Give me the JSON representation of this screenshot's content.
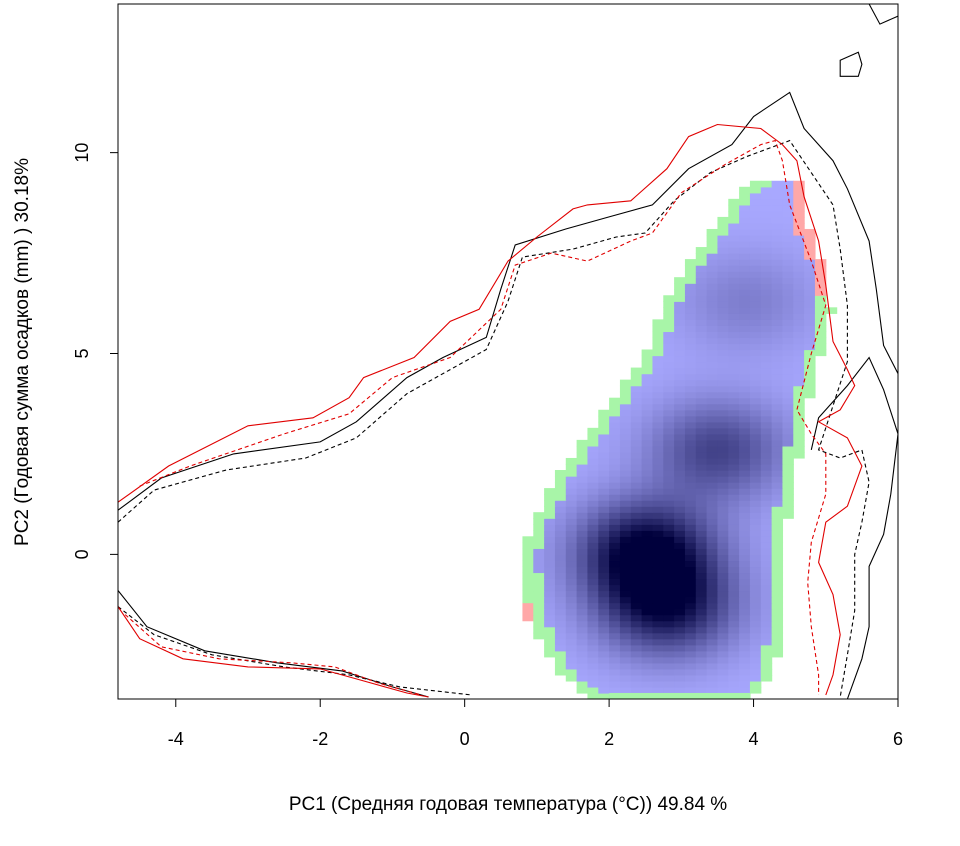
{
  "chart_data": {
    "type": "heatmap",
    "title": "",
    "xlabel": "PC1 (Средняя годовая температура (°С)) 49.84 %",
    "ylabel": "PC2 (Годовая сумма осадков  (mm) ) 30.18%",
    "xlim": [
      -4.8,
      6.0
    ],
    "ylim": [
      -3.6,
      13.7
    ],
    "x_ticks": [
      -4,
      -2,
      0,
      2,
      4,
      6
    ],
    "y_ticks": [
      0,
      5,
      10
    ],
    "x_tick_labels": [
      "-4",
      "-2",
      "0",
      "2",
      "4",
      "6"
    ],
    "y_tick_labels": [
      "0",
      "5",
      "10"
    ],
    "grid": false,
    "colors": {
      "density_low": "#a8a8ff",
      "density_high": "#00003c",
      "green_margin": "#a8f5a8",
      "red_margin": "#ffa8a8",
      "contour_black": "#000000",
      "contour_red": "#e00000"
    },
    "density_peaks": [
      {
        "x": 2.5,
        "y": 0.1,
        "level": 1.0
      },
      {
        "x": 2.8,
        "y": -1.3,
        "level": 0.85
      },
      {
        "x": 3.5,
        "y": 2.6,
        "level": 0.6
      },
      {
        "x": 3.9,
        "y": 6.3,
        "level": 0.25
      }
    ],
    "contours": [
      {
        "name": "black-solid",
        "color": "#000000",
        "dash": false,
        "points": [
          [
            -4.8,
            1.1
          ],
          [
            -4.2,
            1.9
          ],
          [
            -3.2,
            2.5
          ],
          [
            -2.0,
            2.8
          ],
          [
            -1.5,
            3.3
          ],
          [
            -0.8,
            4.4
          ],
          [
            -0.3,
            4.9
          ],
          [
            0.3,
            5.4
          ],
          [
            0.5,
            6.6
          ],
          [
            0.7,
            7.7
          ],
          [
            1.4,
            8.1
          ],
          [
            2.0,
            8.4
          ],
          [
            2.6,
            8.7
          ],
          [
            3.1,
            9.6
          ],
          [
            3.7,
            10.2
          ],
          [
            4.0,
            10.9
          ],
          [
            4.5,
            11.5
          ],
          [
            4.7,
            10.6
          ],
          [
            5.1,
            9.8
          ],
          [
            5.3,
            9.1
          ],
          [
            5.6,
            7.8
          ],
          [
            5.7,
            6.6
          ],
          [
            5.8,
            5.2
          ],
          [
            6.0,
            4.5
          ]
        ]
      },
      {
        "name": "black-solid-lower",
        "color": "#000000",
        "dash": false,
        "points": [
          [
            -4.8,
            -0.9
          ],
          [
            -4.4,
            -1.8
          ],
          [
            -3.6,
            -2.4
          ],
          [
            -2.6,
            -2.7
          ],
          [
            -1.7,
            -2.9
          ],
          [
            -1.0,
            -3.3
          ],
          [
            -0.5,
            -3.55
          ]
        ]
      },
      {
        "name": "black-solid-right",
        "color": "#000000",
        "dash": false,
        "points": [
          [
            4.8,
            2.6
          ],
          [
            4.9,
            3.4
          ],
          [
            5.3,
            4.2
          ],
          [
            5.6,
            4.9
          ],
          [
            5.8,
            4.1
          ],
          [
            6.0,
            3.0
          ],
          [
            5.9,
            1.5
          ],
          [
            5.8,
            0.5
          ],
          [
            5.6,
            -0.3
          ],
          [
            5.6,
            -1.8
          ],
          [
            5.5,
            -2.6
          ],
          [
            5.3,
            -3.6
          ]
        ]
      },
      {
        "name": "black-solid-island-1",
        "color": "#000000",
        "dash": false,
        "closed": true,
        "points": [
          [
            5.2,
            12.3
          ],
          [
            5.45,
            12.5
          ],
          [
            5.5,
            12.2
          ],
          [
            5.45,
            11.9
          ],
          [
            5.2,
            11.9
          ]
        ]
      },
      {
        "name": "black-solid-island-2",
        "color": "#000000",
        "dash": false,
        "points": [
          [
            5.6,
            13.7
          ],
          [
            5.75,
            13.2
          ],
          [
            6.0,
            13.4
          ]
        ]
      },
      {
        "name": "black-dashed",
        "color": "#000000",
        "dash": true,
        "points": [
          [
            -4.8,
            0.8
          ],
          [
            -4.3,
            1.6
          ],
          [
            -3.3,
            2.1
          ],
          [
            -2.2,
            2.4
          ],
          [
            -1.5,
            2.9
          ],
          [
            -0.8,
            4.0
          ],
          [
            -0.2,
            4.6
          ],
          [
            0.3,
            5.1
          ],
          [
            0.6,
            6.3
          ],
          [
            0.8,
            7.4
          ],
          [
            1.5,
            7.6
          ],
          [
            2.1,
            7.9
          ],
          [
            2.5,
            8.0
          ],
          [
            2.9,
            8.8
          ],
          [
            3.4,
            9.5
          ],
          [
            3.9,
            9.9
          ],
          [
            4.5,
            10.3
          ],
          [
            4.8,
            9.5
          ],
          [
            5.1,
            8.7
          ],
          [
            5.2,
            7.6
          ],
          [
            5.3,
            6.2
          ],
          [
            5.3,
            4.8
          ],
          [
            5.1,
            3.7
          ],
          [
            4.9,
            2.6
          ],
          [
            5.2,
            2.4
          ],
          [
            5.5,
            2.6
          ],
          [
            5.6,
            1.8
          ],
          [
            5.5,
            0.8
          ],
          [
            5.4,
            0.0
          ],
          [
            5.4,
            -1.4
          ],
          [
            5.3,
            -2.5
          ],
          [
            5.2,
            -3.55
          ]
        ]
      },
      {
        "name": "black-dashed-lower",
        "color": "#000000",
        "dash": true,
        "points": [
          [
            -4.8,
            -1.3
          ],
          [
            -4.3,
            -2.0
          ],
          [
            -3.5,
            -2.5
          ],
          [
            -2.5,
            -2.8
          ],
          [
            -1.6,
            -3.0
          ],
          [
            -0.9,
            -3.3
          ],
          [
            0.1,
            -3.5
          ]
        ]
      },
      {
        "name": "red-solid",
        "color": "#e00000",
        "dash": false,
        "points": [
          [
            -4.8,
            1.3
          ],
          [
            -4.1,
            2.2
          ],
          [
            -3.0,
            3.2
          ],
          [
            -2.1,
            3.4
          ],
          [
            -1.6,
            3.9
          ],
          [
            -1.4,
            4.4
          ],
          [
            -0.7,
            4.9
          ],
          [
            -0.2,
            5.8
          ],
          [
            0.2,
            6.1
          ],
          [
            0.6,
            7.3
          ],
          [
            1.0,
            7.9
          ],
          [
            1.5,
            8.6
          ],
          [
            1.7,
            8.7
          ],
          [
            2.3,
            8.8
          ],
          [
            2.8,
            9.6
          ],
          [
            3.1,
            10.4
          ],
          [
            3.5,
            10.7
          ],
          [
            4.1,
            10.6
          ],
          [
            4.4,
            10.2
          ],
          [
            4.6,
            9.8
          ],
          [
            4.7,
            8.9
          ],
          [
            4.9,
            7.8
          ],
          [
            5.0,
            6.7
          ],
          [
            5.1,
            5.3
          ],
          [
            5.3,
            4.6
          ],
          [
            5.4,
            4.2
          ],
          [
            5.2,
            3.6
          ],
          [
            4.9,
            3.3
          ],
          [
            5.3,
            2.9
          ],
          [
            5.5,
            2.2
          ],
          [
            5.3,
            1.2
          ],
          [
            5.0,
            0.8
          ],
          [
            4.9,
            -0.2
          ],
          [
            5.1,
            -1.0
          ],
          [
            5.2,
            -2.0
          ],
          [
            5.1,
            -3.0
          ],
          [
            5.0,
            -3.5
          ]
        ]
      },
      {
        "name": "red-solid-lower",
        "color": "#e00000",
        "dash": false,
        "points": [
          [
            -4.8,
            -1.3
          ],
          [
            -4.5,
            -2.1
          ],
          [
            -3.9,
            -2.6
          ],
          [
            -3.0,
            -2.8
          ],
          [
            -2.0,
            -2.85
          ],
          [
            -1.5,
            -3.1
          ],
          [
            -0.8,
            -3.45
          ],
          [
            -0.5,
            -3.55
          ]
        ]
      },
      {
        "name": "red-dashed",
        "color": "#e00000",
        "dash": true,
        "points": [
          [
            -4.5,
            1.7
          ],
          [
            -3.8,
            2.2
          ],
          [
            -2.5,
            3.0
          ],
          [
            -1.6,
            3.5
          ],
          [
            -1.0,
            4.4
          ],
          [
            -0.2,
            4.9
          ],
          [
            0.5,
            6.1
          ],
          [
            0.7,
            7.2
          ],
          [
            1.2,
            7.5
          ],
          [
            1.7,
            7.3
          ],
          [
            2.3,
            7.8
          ],
          [
            2.6,
            8.0
          ],
          [
            3.0,
            9.0
          ],
          [
            3.6,
            9.7
          ],
          [
            4.1,
            10.2
          ],
          [
            4.3,
            10.3
          ],
          [
            4.4,
            9.8
          ],
          [
            4.5,
            8.7
          ],
          [
            4.8,
            7.3
          ],
          [
            5.0,
            6.2
          ],
          [
            4.8,
            5.0
          ],
          [
            4.6,
            3.6
          ],
          [
            4.8,
            3.0
          ],
          [
            5.0,
            2.5
          ],
          [
            5.0,
            1.5
          ],
          [
            4.8,
            0.3
          ],
          [
            4.75,
            -0.7
          ],
          [
            4.8,
            -1.8
          ],
          [
            4.9,
            -3.0
          ],
          [
            4.9,
            -3.5
          ]
        ]
      },
      {
        "name": "red-dashed-lower",
        "color": "#e00000",
        "dash": true,
        "points": [
          [
            -4.7,
            -1.5
          ],
          [
            -4.2,
            -2.3
          ],
          [
            -3.4,
            -2.6
          ],
          [
            -2.4,
            -2.7
          ],
          [
            -1.8,
            -2.8
          ],
          [
            -1.2,
            -3.2
          ],
          [
            -0.6,
            -3.5
          ]
        ]
      }
    ]
  }
}
